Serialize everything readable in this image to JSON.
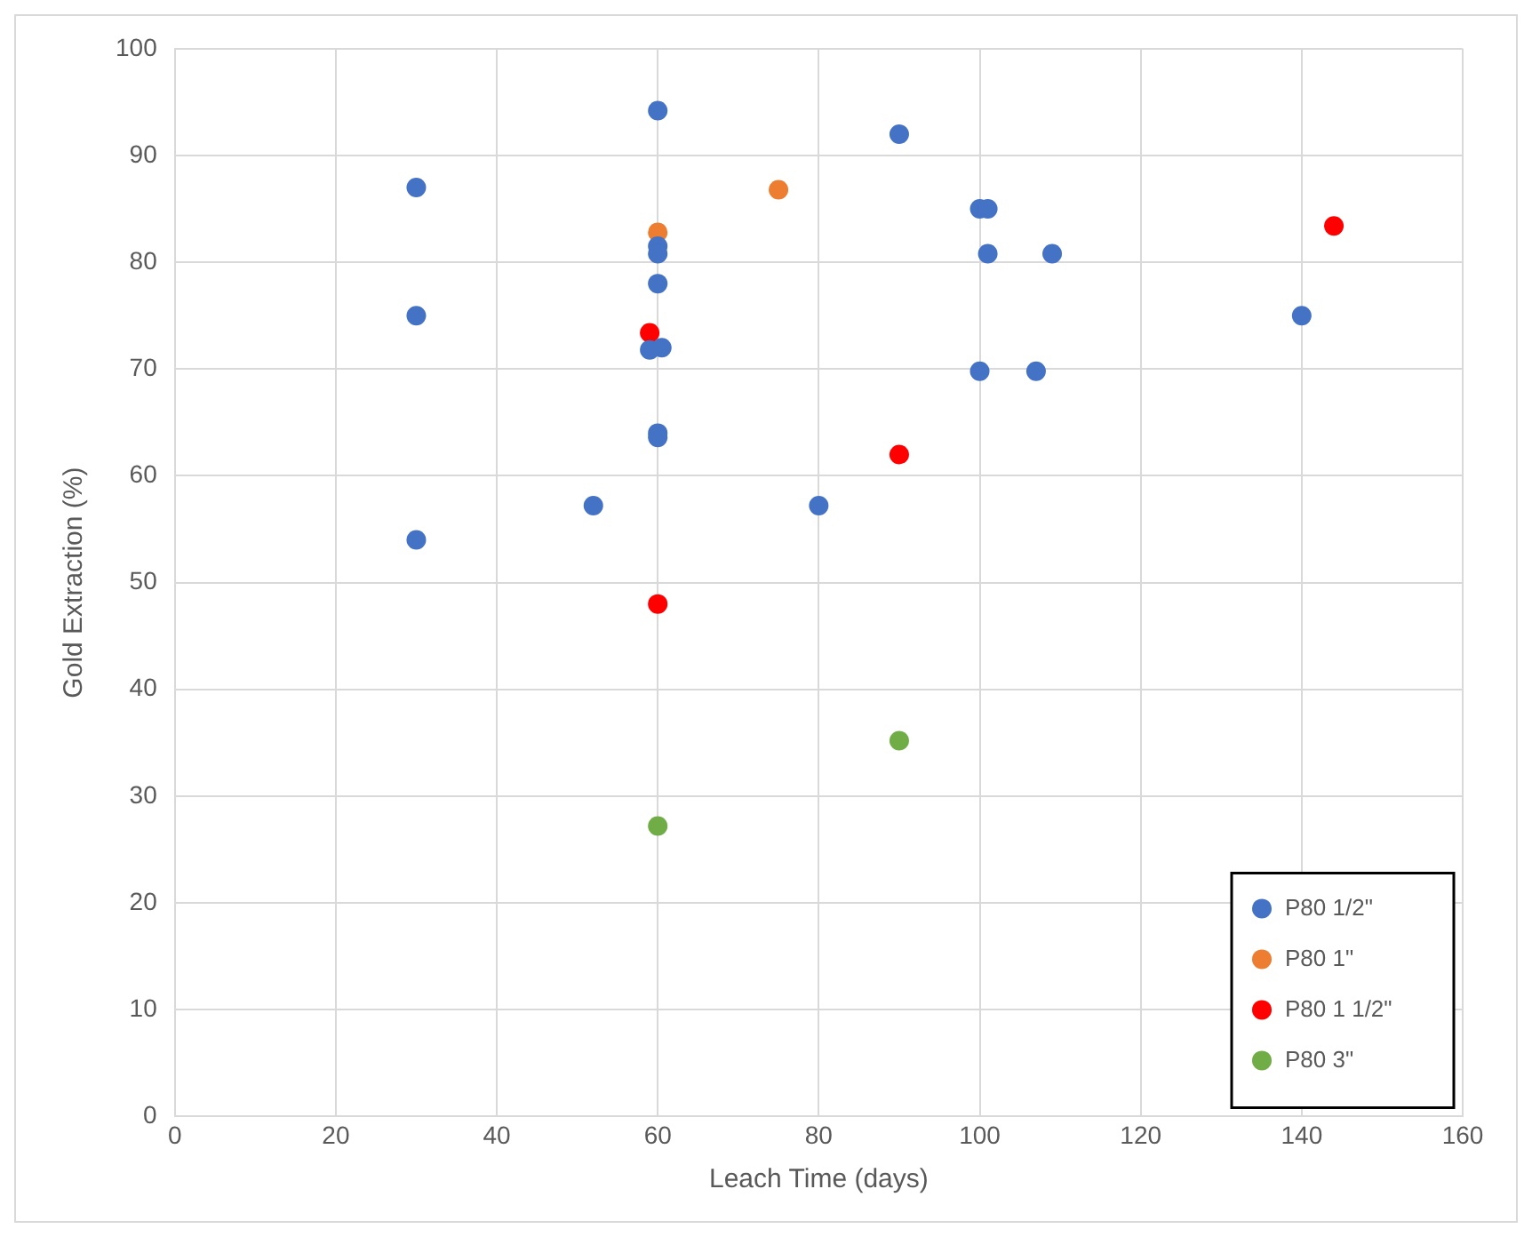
{
  "chart_data": {
    "type": "scatter",
    "xlabel": "Leach Time (days)",
    "ylabel": "Gold Extraction (%)",
    "xlim": [
      0,
      160
    ],
    "xticks": [
      0,
      20,
      40,
      60,
      80,
      100,
      120,
      140,
      160
    ],
    "ylim": [
      0,
      100
    ],
    "yticks": [
      0,
      10,
      20,
      30,
      40,
      50,
      60,
      70,
      80,
      90,
      100
    ],
    "grid": true,
    "legend": "bottom right",
    "marker": "circle",
    "series": [
      {
        "name": "P80 1/2\"",
        "color": "#4472c4",
        "x": [
          30,
          30,
          30,
          60,
          60,
          60,
          60,
          59,
          60.5,
          60,
          60,
          52,
          80,
          90,
          100,
          101,
          101,
          109,
          100,
          107,
          140
        ],
        "values": [
          87,
          75,
          54,
          94.2,
          81.5,
          80.8,
          78,
          71.8,
          72,
          64,
          63.6,
          57.2,
          57.2,
          92,
          85,
          85,
          80.8,
          80.8,
          69.8,
          69.8,
          75
        ]
      },
      {
        "name": "P80 1\"",
        "color": "#ed7d31",
        "x": [
          60,
          75
        ],
        "values": [
          82.8,
          86.8
        ]
      },
      {
        "name": "P80 1 1/2\"",
        "color": "#ff0000",
        "x": [
          59,
          60,
          90,
          144
        ],
        "values": [
          73.4,
          48,
          62,
          83.4
        ]
      },
      {
        "name": "P80 3\"",
        "color": "#70ad47",
        "x": [
          60,
          90
        ],
        "values": [
          27.2,
          35.2
        ]
      }
    ]
  }
}
